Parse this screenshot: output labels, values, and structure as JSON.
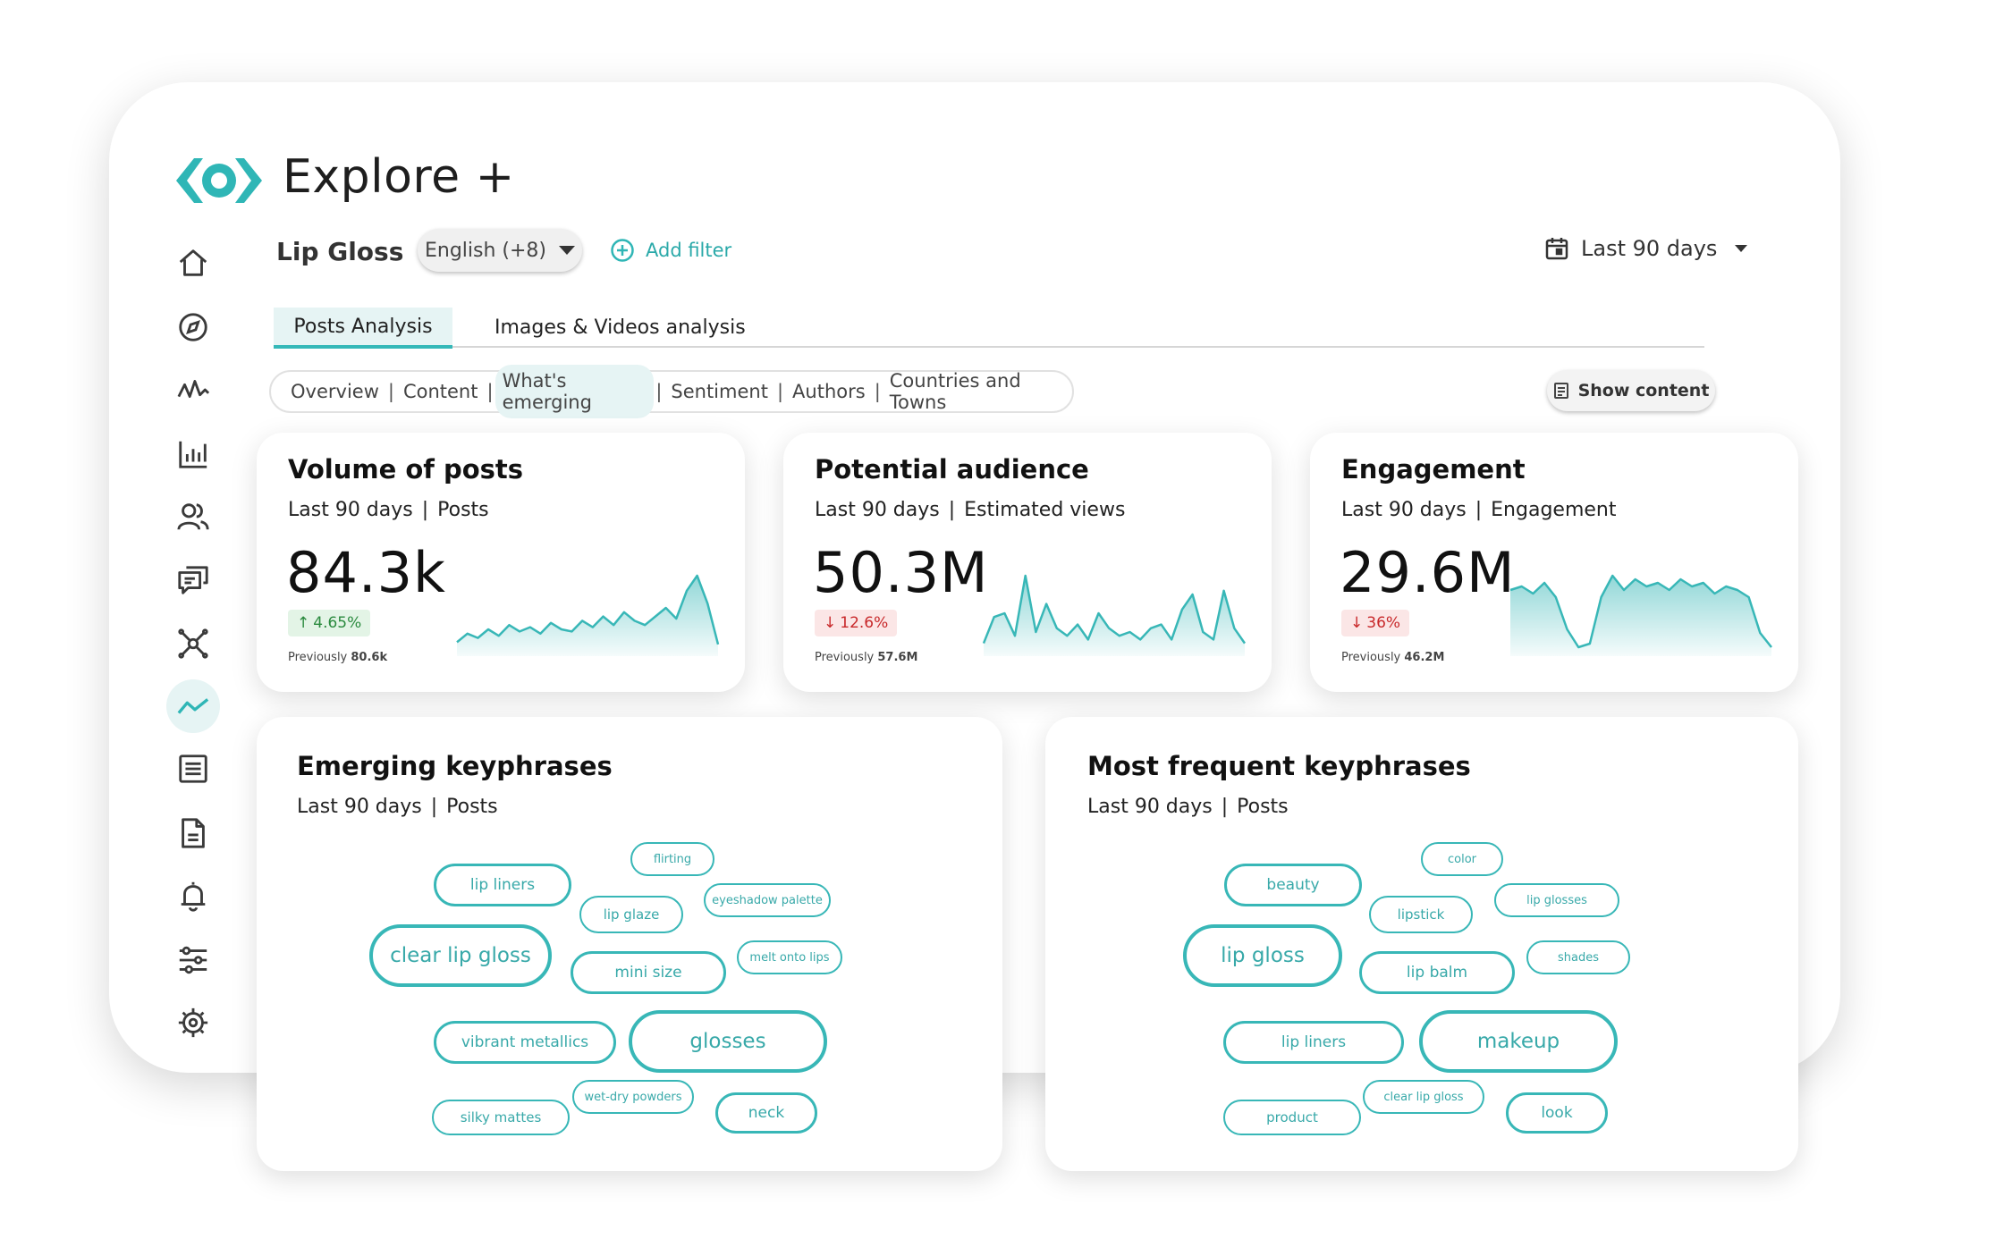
{
  "app": {
    "title": "Explore +"
  },
  "query": {
    "title": "Lip Gloss",
    "language": "English (+8)",
    "add_filter": "Add filter",
    "date_range": "Last 90 days"
  },
  "tabs": [
    {
      "label": "Posts Analysis",
      "active": true
    },
    {
      "label": "Images & Videos analysis",
      "active": false
    }
  ],
  "subnav": [
    {
      "label": "Overview"
    },
    {
      "label": "Content"
    },
    {
      "label": "What's emerging",
      "active": true
    },
    {
      "label": "Sentiment"
    },
    {
      "label": "Authors"
    },
    {
      "label": "Countries and Towns"
    }
  ],
  "show_content": "Show content",
  "sidebar_icons": [
    "home-icon",
    "compass-icon",
    "pulse-icon",
    "bar-chart-icon",
    "users-icon",
    "chat-icon",
    "network-icon",
    "trend-icon",
    "list-icon",
    "document-icon",
    "bell-icon",
    "sliders-icon",
    "gear-icon"
  ],
  "metrics": [
    {
      "title": "Volume of posts",
      "period": "Last 90 days",
      "unit": "Posts",
      "value": "84.3k",
      "change": "4.65%",
      "direction": "up",
      "previous_label": "Previously",
      "previous": "80.6k",
      "trend": [
        4,
        8,
        6,
        10,
        7,
        12,
        9,
        11,
        8,
        13,
        10,
        9,
        14,
        11,
        16,
        12,
        18,
        14,
        12,
        16,
        20,
        15,
        28,
        35,
        22,
        3
      ]
    },
    {
      "title": "Potential audience",
      "period": "Last 90 days",
      "unit": "Estimated views",
      "value": "50.3M",
      "change": "12.6%",
      "direction": "down",
      "previous_label": "Previously",
      "previous": "57.6M",
      "trend": [
        4,
        18,
        20,
        8,
        40,
        10,
        25,
        12,
        8,
        14,
        6,
        20,
        12,
        8,
        10,
        6,
        12,
        14,
        6,
        22,
        30,
        10,
        6,
        32,
        12,
        4
      ]
    },
    {
      "title": "Engagement",
      "period": "Last 90 days",
      "unit": "Engagement",
      "value": "29.6M",
      "change": "36%",
      "direction": "down",
      "previous_label": "Previously",
      "previous": "46.2M",
      "trend": [
        34,
        36,
        32,
        38,
        30,
        12,
        2,
        4,
        30,
        42,
        34,
        40,
        36,
        38,
        34,
        40,
        36,
        38,
        32,
        36,
        34,
        30,
        10,
        2
      ]
    }
  ],
  "keyphrase_cards": [
    {
      "title": "Emerging keyphrases",
      "period": "Last 90 days",
      "unit": "Posts",
      "chips": [
        "lip liners",
        "flirting",
        "lip glaze",
        "eyeshadow palette",
        "clear lip gloss",
        "mini size",
        "melt onto lips",
        "vibrant metallics",
        "glosses",
        "wet-dry powders",
        "silky mattes",
        "neck"
      ]
    },
    {
      "title": "Most frequent keyphrases",
      "period": "Last 90 days",
      "unit": "Posts",
      "chips": [
        "beauty",
        "color",
        "lipstick",
        "lip glosses",
        "lip gloss",
        "lip balm",
        "shades",
        "lip liners",
        "makeup",
        "product",
        "clear lip gloss",
        "look"
      ]
    }
  ],
  "colors": {
    "accent": "#38b7b7",
    "up": "#2a8a3e",
    "down": "#c8282a"
  }
}
